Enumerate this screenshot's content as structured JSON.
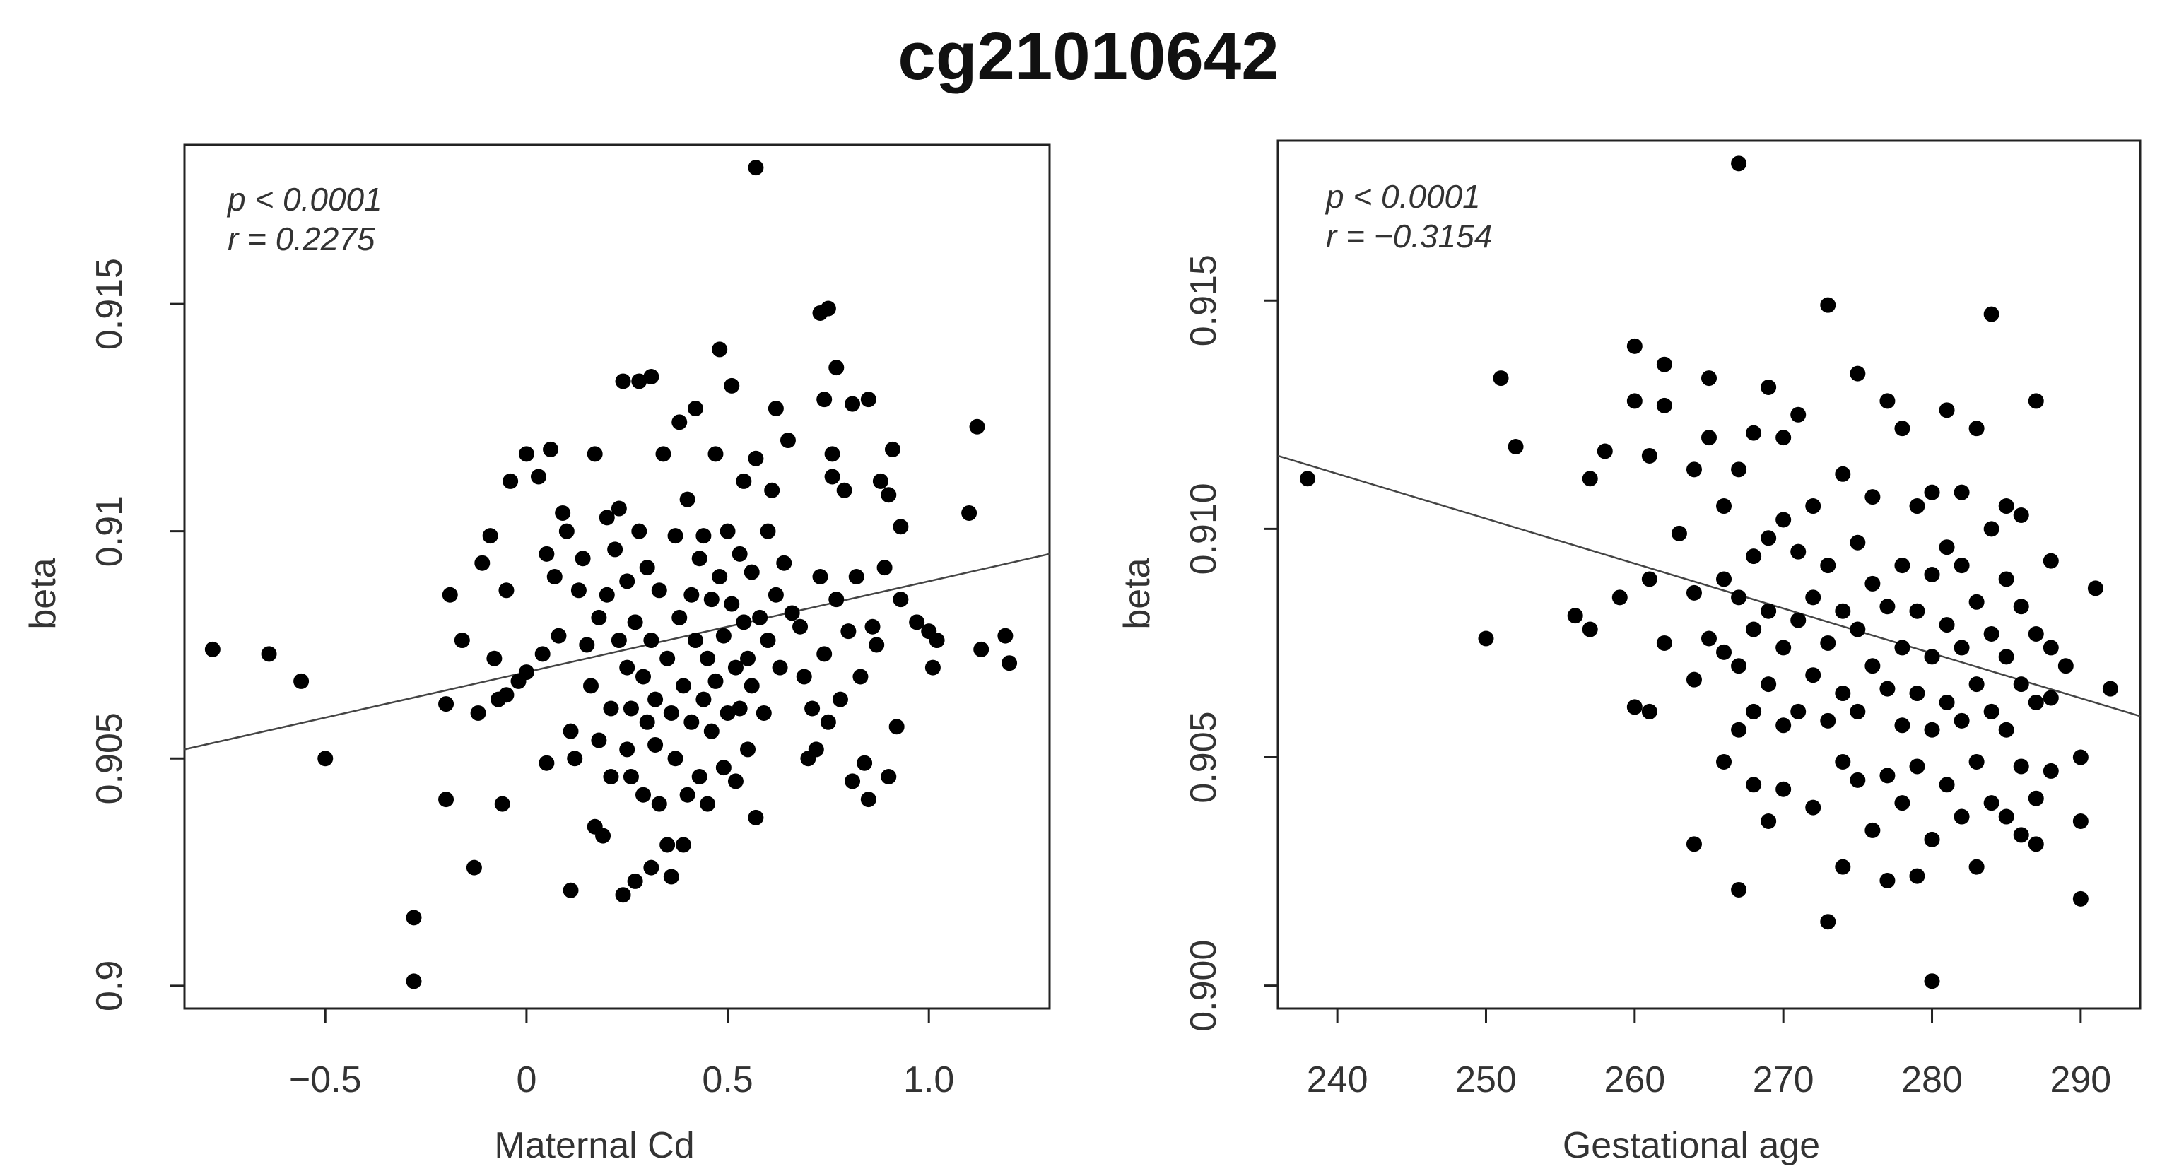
{
  "title": "cg21010642",
  "colors": {
    "points": "#000000",
    "axis": "#222222",
    "fit_line": "#444444",
    "text": "#333333"
  },
  "chart_data": [
    {
      "type": "scatter",
      "xlabel": "Maternal Cd",
      "ylabel": "beta",
      "xlim": [
        -0.85,
        1.3
      ],
      "ylim": [
        0.8995,
        0.9185
      ],
      "x_ticks": [
        {
          "value": -0.5,
          "label": "−0.5"
        },
        {
          "value": 0,
          "label": "0"
        },
        {
          "value": 0.5,
          "label": "0.5"
        },
        {
          "value": 1.0,
          "label": "1.0"
        }
      ],
      "y_ticks": [
        {
          "value": 0.9,
          "label": "0.9"
        },
        {
          "value": 0.905,
          "label": "0.905"
        },
        {
          "value": 0.91,
          "label": "0.91"
        },
        {
          "value": 0.915,
          "label": "0.915"
        }
      ],
      "annotations": [
        "p < 0.0001",
        "r = 0.2275"
      ],
      "fit_line": {
        "x": [
          -0.85,
          1.3
        ],
        "y": [
          0.9052,
          0.9095
        ]
      },
      "points": [
        [
          0.57,
          0.918
        ],
        [
          -0.78,
          0.9074
        ],
        [
          -0.64,
          0.9073
        ],
        [
          -0.56,
          0.9067
        ],
        [
          -0.5,
          0.905
        ],
        [
          -0.28,
          0.9015
        ],
        [
          -0.28,
          0.9001
        ],
        [
          -0.2,
          0.9041
        ],
        [
          -0.2,
          0.9062
        ],
        [
          -0.19,
          0.9086
        ],
        [
          -0.16,
          0.9076
        ],
        [
          -0.13,
          0.9026
        ],
        [
          -0.12,
          0.906
        ],
        [
          -0.11,
          0.9093
        ],
        [
          -0.09,
          0.9099
        ],
        [
          -0.08,
          0.9072
        ],
        [
          -0.07,
          0.9063
        ],
        [
          -0.06,
          0.904
        ],
        [
          -0.05,
          0.9087
        ],
        [
          -0.05,
          0.9064
        ],
        [
          -0.04,
          0.9111
        ],
        [
          -0.02,
          0.9067
        ],
        [
          0.0,
          0.9069
        ],
        [
          0.0,
          0.9117
        ],
        [
          0.03,
          0.9112
        ],
        [
          0.04,
          0.9073
        ],
        [
          0.05,
          0.9049
        ],
        [
          0.05,
          0.9095
        ],
        [
          0.06,
          0.9118
        ],
        [
          0.07,
          0.909
        ],
        [
          0.08,
          0.9077
        ],
        [
          0.09,
          0.9104
        ],
        [
          0.1,
          0.91
        ],
        [
          0.11,
          0.9056
        ],
        [
          0.11,
          0.9021
        ],
        [
          0.12,
          0.905
        ],
        [
          0.13,
          0.9087
        ],
        [
          0.14,
          0.9094
        ],
        [
          0.15,
          0.9075
        ],
        [
          0.16,
          0.9066
        ],
        [
          0.17,
          0.9035
        ],
        [
          0.17,
          0.9117
        ],
        [
          0.18,
          0.9054
        ],
        [
          0.18,
          0.9081
        ],
        [
          0.19,
          0.9033
        ],
        [
          0.2,
          0.9086
        ],
        [
          0.2,
          0.9103
        ],
        [
          0.21,
          0.9046
        ],
        [
          0.21,
          0.9061
        ],
        [
          0.22,
          0.9096
        ],
        [
          0.23,
          0.9076
        ],
        [
          0.23,
          0.9105
        ],
        [
          0.24,
          0.902
        ],
        [
          0.24,
          0.9133
        ],
        [
          0.25,
          0.9052
        ],
        [
          0.25,
          0.907
        ],
        [
          0.25,
          0.9089
        ],
        [
          0.26,
          0.9046
        ],
        [
          0.26,
          0.9061
        ],
        [
          0.27,
          0.9023
        ],
        [
          0.27,
          0.908
        ],
        [
          0.28,
          0.9133
        ],
        [
          0.28,
          0.91
        ],
        [
          0.29,
          0.9042
        ],
        [
          0.29,
          0.9068
        ],
        [
          0.3,
          0.9058
        ],
        [
          0.3,
          0.9092
        ],
        [
          0.31,
          0.9026
        ],
        [
          0.31,
          0.9134
        ],
        [
          0.31,
          0.9076
        ],
        [
          0.32,
          0.9053
        ],
        [
          0.32,
          0.9063
        ],
        [
          0.33,
          0.9087
        ],
        [
          0.33,
          0.904
        ],
        [
          0.34,
          0.9117
        ],
        [
          0.35,
          0.9031
        ],
        [
          0.35,
          0.9072
        ],
        [
          0.36,
          0.906
        ],
        [
          0.36,
          0.9024
        ],
        [
          0.37,
          0.9099
        ],
        [
          0.37,
          0.905
        ],
        [
          0.38,
          0.9081
        ],
        [
          0.38,
          0.9124
        ],
        [
          0.39,
          0.9031
        ],
        [
          0.39,
          0.9066
        ],
        [
          0.4,
          0.9107
        ],
        [
          0.4,
          0.9042
        ],
        [
          0.41,
          0.9086
        ],
        [
          0.41,
          0.9058
        ],
        [
          0.42,
          0.9076
        ],
        [
          0.42,
          0.9127
        ],
        [
          0.43,
          0.9046
        ],
        [
          0.43,
          0.9094
        ],
        [
          0.44,
          0.9063
        ],
        [
          0.44,
          0.9099
        ],
        [
          0.45,
          0.9072
        ],
        [
          0.45,
          0.904
        ],
        [
          0.46,
          0.9085
        ],
        [
          0.46,
          0.9056
        ],
        [
          0.47,
          0.9117
        ],
        [
          0.47,
          0.9067
        ],
        [
          0.48,
          0.914
        ],
        [
          0.48,
          0.909
        ],
        [
          0.49,
          0.9048
        ],
        [
          0.49,
          0.9077
        ],
        [
          0.5,
          0.91
        ],
        [
          0.5,
          0.906
        ],
        [
          0.51,
          0.9084
        ],
        [
          0.51,
          0.9132
        ],
        [
          0.52,
          0.907
        ],
        [
          0.52,
          0.9045
        ],
        [
          0.53,
          0.9095
        ],
        [
          0.53,
          0.9061
        ],
        [
          0.54,
          0.908
        ],
        [
          0.54,
          0.9111
        ],
        [
          0.55,
          0.9052
        ],
        [
          0.55,
          0.9072
        ],
        [
          0.56,
          0.9091
        ],
        [
          0.56,
          0.9066
        ],
        [
          0.57,
          0.9037
        ],
        [
          0.57,
          0.9116
        ],
        [
          0.58,
          0.9081
        ],
        [
          0.59,
          0.906
        ],
        [
          0.6,
          0.91
        ],
        [
          0.6,
          0.9076
        ],
        [
          0.61,
          0.9109
        ],
        [
          0.62,
          0.9086
        ],
        [
          0.62,
          0.9127
        ],
        [
          0.63,
          0.907
        ],
        [
          0.64,
          0.9093
        ],
        [
          0.65,
          0.912
        ],
        [
          0.66,
          0.9082
        ],
        [
          0.68,
          0.9079
        ],
        [
          0.69,
          0.9068
        ],
        [
          0.7,
          0.905
        ],
        [
          0.71,
          0.9061
        ],
        [
          0.72,
          0.9052
        ],
        [
          0.73,
          0.909
        ],
        [
          0.73,
          0.9148
        ],
        [
          0.74,
          0.9073
        ],
        [
          0.74,
          0.9129
        ],
        [
          0.75,
          0.9149
        ],
        [
          0.75,
          0.9058
        ],
        [
          0.76,
          0.9117
        ],
        [
          0.76,
          0.9112
        ],
        [
          0.77,
          0.9136
        ],
        [
          0.77,
          0.9085
        ],
        [
          0.78,
          0.9063
        ],
        [
          0.79,
          0.9109
        ],
        [
          0.8,
          0.9078
        ],
        [
          0.81,
          0.9045
        ],
        [
          0.81,
          0.9128
        ],
        [
          0.82,
          0.909
        ],
        [
          0.83,
          0.9068
        ],
        [
          0.84,
          0.9049
        ],
        [
          0.85,
          0.9129
        ],
        [
          0.85,
          0.9041
        ],
        [
          0.86,
          0.9079
        ],
        [
          0.87,
          0.9075
        ],
        [
          0.88,
          0.9111
        ],
        [
          0.89,
          0.9092
        ],
        [
          0.9,
          0.9108
        ],
        [
          0.9,
          0.9046
        ],
        [
          0.91,
          0.9118
        ],
        [
          0.92,
          0.9057
        ],
        [
          0.93,
          0.9085
        ],
        [
          0.93,
          0.9101
        ],
        [
          0.97,
          0.908
        ],
        [
          1.0,
          0.9078
        ],
        [
          1.01,
          0.907
        ],
        [
          1.02,
          0.9076
        ],
        [
          1.1,
          0.9104
        ],
        [
          1.12,
          0.9123
        ],
        [
          1.13,
          0.9074
        ],
        [
          1.19,
          0.9077
        ],
        [
          1.2,
          0.9071
        ]
      ]
    },
    {
      "type": "scatter",
      "xlabel": "Gestational age",
      "ylabel": "beta",
      "xlim": [
        236,
        294
      ],
      "ylim": [
        0.8995,
        0.9185
      ],
      "x_ticks": [
        {
          "value": 240,
          "label": "240"
        },
        {
          "value": 250,
          "label": "250"
        },
        {
          "value": 260,
          "label": "260"
        },
        {
          "value": 270,
          "label": "270"
        },
        {
          "value": 280,
          "label": "280"
        },
        {
          "value": 290,
          "label": "290"
        }
      ],
      "y_ticks": [
        {
          "value": 0.9,
          "label": "0.900"
        },
        {
          "value": 0.905,
          "label": "0.905"
        },
        {
          "value": 0.91,
          "label": "0.910"
        },
        {
          "value": 0.915,
          "label": "0.915"
        }
      ],
      "annotations": [
        "p < 0.0001",
        "r = −0.3154"
      ],
      "fit_line": {
        "x": [
          236,
          294
        ],
        "y": [
          0.9116,
          0.9059
        ]
      },
      "points": [
        [
          238,
          0.9111
        ],
        [
          250,
          0.9076
        ],
        [
          251,
          0.9133
        ],
        [
          252,
          0.9118
        ],
        [
          256,
          0.9081
        ],
        [
          257,
          0.9111
        ],
        [
          257,
          0.9078
        ],
        [
          258,
          0.9117
        ],
        [
          259,
          0.9085
        ],
        [
          260,
          0.9061
        ],
        [
          260,
          0.9128
        ],
        [
          260,
          0.914
        ],
        [
          261,
          0.9089
        ],
        [
          261,
          0.9116
        ],
        [
          261,
          0.906
        ],
        [
          262,
          0.9127
        ],
        [
          262,
          0.9136
        ],
        [
          262,
          0.9075
        ],
        [
          263,
          0.9099
        ],
        [
          264,
          0.9067
        ],
        [
          264,
          0.9086
        ],
        [
          264,
          0.9113
        ],
        [
          264,
          0.9031
        ],
        [
          265,
          0.9076
        ],
        [
          265,
          0.912
        ],
        [
          265,
          0.9133
        ],
        [
          266,
          0.9049
        ],
        [
          266,
          0.9073
        ],
        [
          266,
          0.9089
        ],
        [
          266,
          0.9105
        ],
        [
          267,
          0.918
        ],
        [
          267,
          0.9021
        ],
        [
          267,
          0.9056
        ],
        [
          267,
          0.907
        ],
        [
          267,
          0.9085
        ],
        [
          267,
          0.9113
        ],
        [
          268,
          0.9044
        ],
        [
          268,
          0.906
        ],
        [
          268,
          0.9078
        ],
        [
          268,
          0.9094
        ],
        [
          268,
          0.9121
        ],
        [
          269,
          0.9036
        ],
        [
          269,
          0.9066
        ],
        [
          269,
          0.9082
        ],
        [
          269,
          0.9098
        ],
        [
          269,
          0.9131
        ],
        [
          270,
          0.9043
        ],
        [
          270,
          0.9057
        ],
        [
          270,
          0.9074
        ],
        [
          270,
          0.9102
        ],
        [
          270,
          0.912
        ],
        [
          271,
          0.906
        ],
        [
          271,
          0.908
        ],
        [
          271,
          0.9095
        ],
        [
          271,
          0.9125
        ],
        [
          272,
          0.9039
        ],
        [
          272,
          0.9068
        ],
        [
          272,
          0.9085
        ],
        [
          272,
          0.9105
        ],
        [
          273,
          0.9014
        ],
        [
          273,
          0.9149
        ],
        [
          273,
          0.9058
        ],
        [
          273,
          0.9075
        ],
        [
          273,
          0.9092
        ],
        [
          274,
          0.9026
        ],
        [
          274,
          0.9049
        ],
        [
          274,
          0.9064
        ],
        [
          274,
          0.9082
        ],
        [
          274,
          0.9112
        ],
        [
          275,
          0.9134
        ],
        [
          275,
          0.9045
        ],
        [
          275,
          0.906
        ],
        [
          275,
          0.9078
        ],
        [
          275,
          0.9097
        ],
        [
          276,
          0.9034
        ],
        [
          276,
          0.907
        ],
        [
          276,
          0.9088
        ],
        [
          276,
          0.9107
        ],
        [
          277,
          0.9023
        ],
        [
          277,
          0.9046
        ],
        [
          277,
          0.9065
        ],
        [
          277,
          0.9083
        ],
        [
          277,
          0.9128
        ],
        [
          278,
          0.904
        ],
        [
          278,
          0.9057
        ],
        [
          278,
          0.9074
        ],
        [
          278,
          0.9092
        ],
        [
          278,
          0.9122
        ],
        [
          279,
          0.9024
        ],
        [
          279,
          0.9048
        ],
        [
          279,
          0.9064
        ],
        [
          279,
          0.9082
        ],
        [
          279,
          0.9105
        ],
        [
          280,
          0.9001
        ],
        [
          280,
          0.9032
        ],
        [
          280,
          0.9056
        ],
        [
          280,
          0.9072
        ],
        [
          280,
          0.909
        ],
        [
          280,
          0.9108
        ],
        [
          281,
          0.9044
        ],
        [
          281,
          0.9062
        ],
        [
          281,
          0.9079
        ],
        [
          281,
          0.9096
        ],
        [
          281,
          0.9126
        ],
        [
          282,
          0.9037
        ],
        [
          282,
          0.9058
        ],
        [
          282,
          0.9074
        ],
        [
          282,
          0.9092
        ],
        [
          282,
          0.9108
        ],
        [
          283,
          0.9026
        ],
        [
          283,
          0.9049
        ],
        [
          283,
          0.9066
        ],
        [
          283,
          0.9084
        ],
        [
          283,
          0.9122
        ],
        [
          284,
          0.9147
        ],
        [
          284,
          0.904
        ],
        [
          284,
          0.906
        ],
        [
          284,
          0.9077
        ],
        [
          284,
          0.91
        ],
        [
          285,
          0.9037
        ],
        [
          285,
          0.9056
        ],
        [
          285,
          0.9072
        ],
        [
          285,
          0.9089
        ],
        [
          285,
          0.9105
        ],
        [
          286,
          0.9033
        ],
        [
          286,
          0.9048
        ],
        [
          286,
          0.9066
        ],
        [
          286,
          0.9083
        ],
        [
          286,
          0.9103
        ],
        [
          287,
          0.9031
        ],
        [
          287,
          0.9041
        ],
        [
          287,
          0.9062
        ],
        [
          287,
          0.9077
        ],
        [
          287,
          0.9128
        ],
        [
          288,
          0.9047
        ],
        [
          288,
          0.9063
        ],
        [
          288,
          0.9074
        ],
        [
          288,
          0.9093
        ],
        [
          289,
          0.907
        ],
        [
          290,
          0.905
        ],
        [
          290,
          0.9036
        ],
        [
          290,
          0.9019
        ],
        [
          291,
          0.9087
        ],
        [
          292,
          0.9065
        ]
      ]
    }
  ]
}
